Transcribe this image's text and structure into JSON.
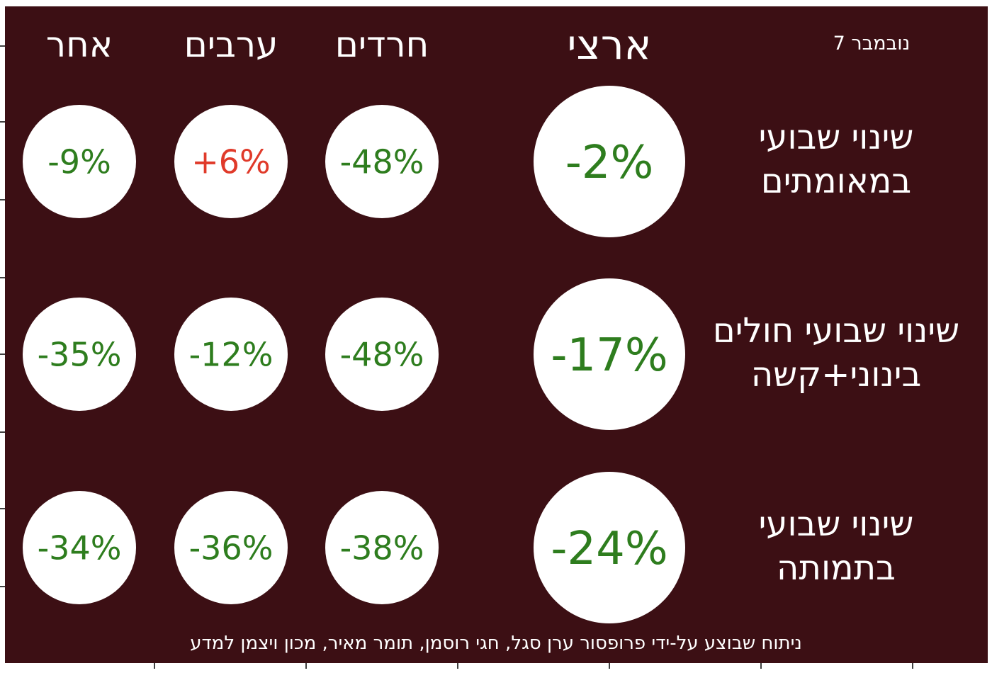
{
  "chart_data": {
    "type": "table",
    "date_label": "נובמבר 7",
    "columns": [
      "ארצי",
      "חרדים",
      "ערבים",
      "אחר"
    ],
    "rows": [
      {
        "label_lines": [
          "שינוי שבועי",
          "במאומתים"
        ],
        "values": [
          "-2%",
          "-48%",
          "+6%",
          "-9%"
        ]
      },
      {
        "label_lines": [
          "שינוי שבועי חולים",
          "בינוני+קשה"
        ],
        "values": [
          "-17%",
          "-48%",
          "-12%",
          "-35%"
        ]
      },
      {
        "label_lines": [
          "שינוי שבועי",
          "בתמותה"
        ],
        "values": [
          "-24%",
          "-38%",
          "-36%",
          "-34%"
        ]
      }
    ],
    "footer": "ניתוח שבוצע על-ידי פרופסור ערן סגל, חגי רוסמן, תומר מאיר, מכון ויצמן למדע",
    "colors": {
      "background": "#3c0f14",
      "circle": "#ffffff",
      "header_text": "#ffffff",
      "decrease": "#2e7d1e",
      "increase": "#e03a2a"
    }
  }
}
